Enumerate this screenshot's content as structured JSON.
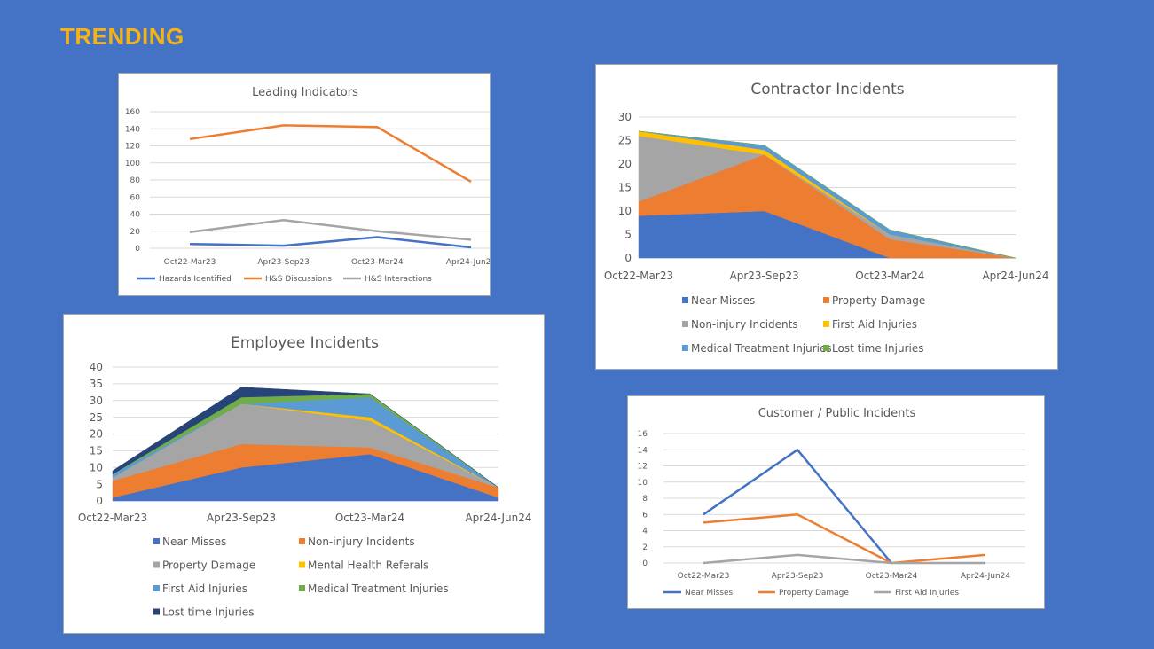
{
  "page": {
    "title": "TRENDING"
  },
  "colors": {
    "blue": "#4472C4",
    "orange": "#ED7D31",
    "gray": "#A5A5A5",
    "yellow": "#FFC000",
    "lightblue": "#5B9BD5",
    "green": "#70AD47",
    "navy": "#264478"
  },
  "chart_data": [
    {
      "id": "leading",
      "type": "line",
      "title": "Leading Indicators",
      "categories": [
        "Oct22-Mar23",
        "Apr23-Sep23",
        "Oct23-Mar24",
        "Apr24-Jun24"
      ],
      "ylim": [
        0,
        160
      ],
      "yticks": [
        0,
        20,
        40,
        60,
        80,
        100,
        120,
        140,
        160
      ],
      "grid": true,
      "legend": "bottom",
      "series": [
        {
          "name": "Hazards Identified",
          "color": "#4472C4",
          "values": [
            5,
            3,
            13,
            1
          ]
        },
        {
          "name": "H&S Discussions",
          "color": "#ED7D31",
          "values": [
            128,
            144,
            142,
            78
          ]
        },
        {
          "name": "H&S Interactions",
          "color": "#A5A5A5",
          "values": [
            19,
            33,
            20,
            10
          ]
        }
      ]
    },
    {
      "id": "contractor",
      "type": "area",
      "stacked": true,
      "title": "Contractor Incidents",
      "categories": [
        "Oct22-Mar23",
        "Apr23-Sep23",
        "Oct23-Mar24",
        "Apr24-Jun24"
      ],
      "ylim": [
        0,
        30
      ],
      "yticks": [
        0,
        5,
        10,
        15,
        20,
        25,
        30
      ],
      "grid": true,
      "legend": "bottom",
      "series": [
        {
          "name": "Near Misses",
          "color": "#4472C4",
          "values": [
            9,
            10,
            0,
            0
          ]
        },
        {
          "name": "Property Damage",
          "color": "#ED7D31",
          "values": [
            3,
            12,
            4,
            0
          ]
        },
        {
          "name": "Non-injury Incidents",
          "color": "#A5A5A5",
          "values": [
            14,
            0,
            1,
            0
          ]
        },
        {
          "name": "First Aid Injuries",
          "color": "#FFC000",
          "values": [
            1,
            1,
            0,
            0
          ]
        },
        {
          "name": "Medical Treatment Injuries",
          "color": "#5B9BD5",
          "values": [
            0,
            1,
            1,
            0
          ]
        },
        {
          "name": "Lost time Injuries",
          "color": "#70AD47",
          "values": [
            0,
            0,
            0,
            0
          ]
        }
      ]
    },
    {
      "id": "employee",
      "type": "area",
      "stacked": true,
      "title": "Employee Incidents",
      "categories": [
        "Oct22-Mar23",
        "Apr23-Sep23",
        "Oct23-Mar24",
        "Apr24-Jun24"
      ],
      "ylim": [
        0,
        40
      ],
      "yticks": [
        0,
        5,
        10,
        15,
        20,
        25,
        30,
        35,
        40
      ],
      "grid": true,
      "legend": "bottom",
      "series": [
        {
          "name": "Near Misses",
          "color": "#4472C4",
          "values": [
            1,
            10,
            14,
            1
          ]
        },
        {
          "name": "Non-injury Incidents",
          "color": "#ED7D31",
          "values": [
            5,
            7,
            2,
            3
          ]
        },
        {
          "name": "Property Damage",
          "color": "#A5A5A5",
          "values": [
            1,
            12,
            8,
            0
          ]
        },
        {
          "name": "Mental Health Referals",
          "color": "#FFC000",
          "values": [
            0,
            0,
            1,
            0
          ]
        },
        {
          "name": "First Aid Injuries",
          "color": "#5B9BD5",
          "values": [
            1,
            0,
            6,
            0
          ]
        },
        {
          "name": "Medical Treatment Injuries",
          "color": "#70AD47",
          "values": [
            0,
            2,
            1,
            0
          ]
        },
        {
          "name": "Lost time Injuries",
          "color": "#264478",
          "values": [
            1,
            3,
            0,
            0
          ]
        }
      ]
    },
    {
      "id": "customer",
      "type": "line",
      "title": "Customer / Public Incidents",
      "categories": [
        "Oct22-Mar23",
        "Apr23-Sep23",
        "Oct23-Mar24",
        "Apr24-Jun24"
      ],
      "ylim": [
        0,
        16
      ],
      "yticks": [
        0,
        2,
        4,
        6,
        8,
        10,
        12,
        14,
        16
      ],
      "grid": true,
      "legend": "bottom",
      "series": [
        {
          "name": "Near Misses",
          "color": "#4472C4",
          "values": [
            6,
            14,
            0,
            null
          ]
        },
        {
          "name": "Property Damage",
          "color": "#ED7D31",
          "values": [
            5,
            6,
            0,
            1
          ]
        },
        {
          "name": "First Aid Injuries",
          "color": "#A5A5A5",
          "values": [
            0,
            1,
            0,
            0
          ]
        }
      ]
    }
  ]
}
